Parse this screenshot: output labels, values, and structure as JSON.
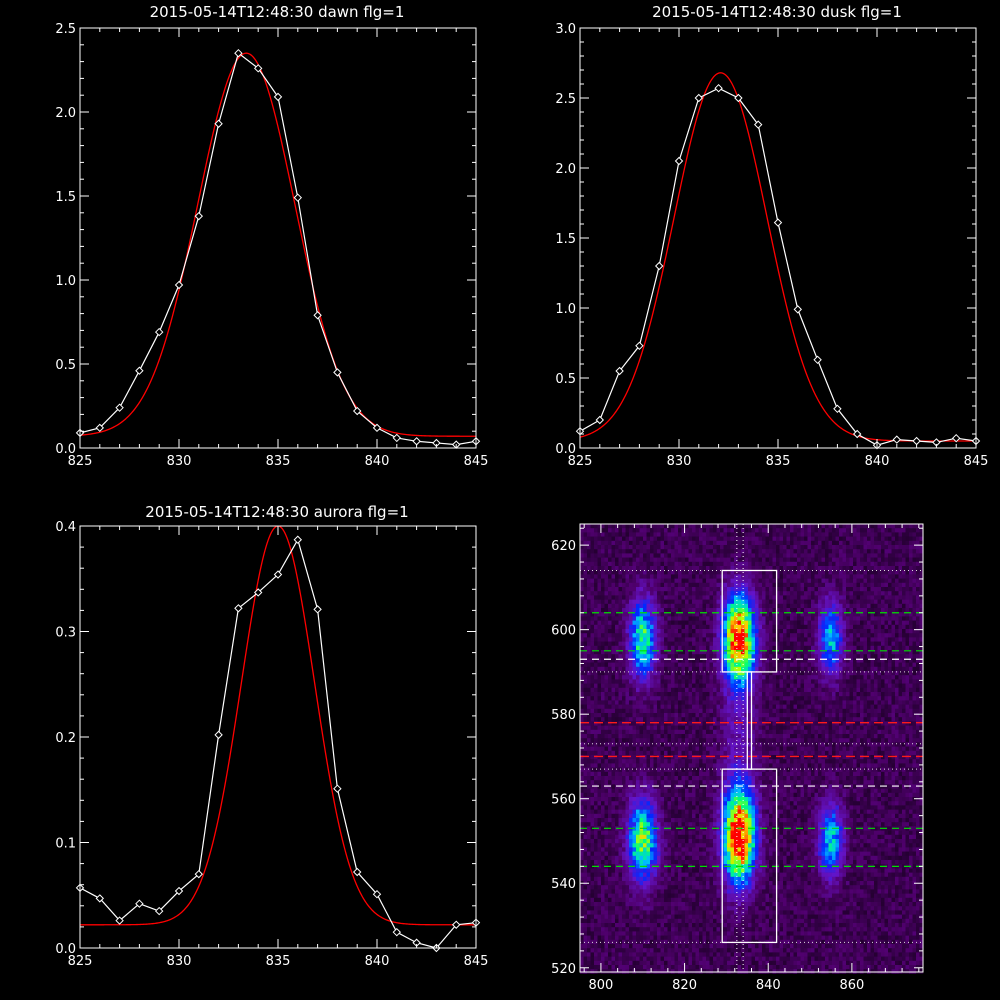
{
  "colors": {
    "background": "#000000",
    "axes": "#ffffff",
    "data": "#ffffff",
    "fit": "#ff0000",
    "green_lines": "#00e000",
    "red_lines": "#ff1a1a",
    "white_lines": "#ffffff"
  },
  "chart_data": [
    {
      "type": "line",
      "title": "2015-05-14T12:48:30 dawn flg=1",
      "xlim": [
        825,
        845
      ],
      "ylim": [
        0,
        2.5
      ],
      "xticks": [
        "825",
        "830",
        "835",
        "840",
        "845"
      ],
      "yticks": [
        "0.0",
        "0.5",
        "1.0",
        "1.5",
        "2.0",
        "2.5"
      ],
      "grid": false,
      "series": [
        {
          "marker": "diamond",
          "color": "#ffffff",
          "x": [
            825,
            826,
            827,
            828,
            829,
            830,
            831,
            832,
            833,
            834,
            835,
            836,
            837,
            838,
            839,
            840,
            841,
            842,
            843,
            844,
            845
          ],
          "y": [
            0.09,
            0.12,
            0.24,
            0.46,
            0.69,
            0.97,
            1.38,
            1.93,
            2.35,
            2.26,
            2.09,
            1.49,
            0.79,
            0.45,
            0.22,
            0.12,
            0.06,
            0.04,
            0.03,
            0.02,
            0.04
          ]
        },
        {
          "style": "curve",
          "color": "#ff0000",
          "amplitude": 2.28,
          "center": 833.4,
          "sigma": 2.45,
          "offset": 0.07
        }
      ]
    },
    {
      "type": "line",
      "title": "2015-05-14T12:48:30 dusk flg=1",
      "xlim": [
        825,
        845
      ],
      "ylim": [
        0,
        3.0
      ],
      "xticks": [
        "825",
        "830",
        "835",
        "840",
        "845"
      ],
      "yticks": [
        "0.0",
        "0.5",
        "1.0",
        "1.5",
        "2.0",
        "2.5",
        "3.0"
      ],
      "grid": false,
      "series": [
        {
          "marker": "diamond",
          "color": "#ffffff",
          "x": [
            825,
            826,
            827,
            828,
            829,
            830,
            831,
            832,
            833,
            834,
            835,
            836,
            837,
            838,
            839,
            840,
            841,
            842,
            843,
            844,
            845
          ],
          "y": [
            0.12,
            0.2,
            0.55,
            0.73,
            1.3,
            2.05,
            2.5,
            2.57,
            2.5,
            2.31,
            1.61,
            0.99,
            0.63,
            0.28,
            0.1,
            0.02,
            0.06,
            0.05,
            0.04,
            0.07,
            0.05
          ]
        },
        {
          "style": "curve",
          "color": "#ff0000",
          "amplitude": 2.63,
          "center": 832.1,
          "sigma": 2.35,
          "offset": 0.05
        }
      ]
    },
    {
      "type": "line",
      "title": "2015-05-14T12:48:30 aurora flg=1",
      "xlim": [
        825,
        845
      ],
      "ylim": [
        0,
        0.4
      ],
      "xticks": [
        "825",
        "830",
        "835",
        "840",
        "845"
      ],
      "yticks": [
        "0.0",
        "0.1",
        "0.2",
        "0.3",
        "0.4"
      ],
      "grid": false,
      "series": [
        {
          "marker": "diamond",
          "color": "#ffffff",
          "x": [
            825,
            826,
            827,
            828,
            829,
            830,
            831,
            832,
            833,
            834,
            835,
            836,
            837,
            838,
            839,
            840,
            841,
            842,
            843,
            844,
            845
          ],
          "y": [
            0.057,
            0.047,
            0.026,
            0.042,
            0.035,
            0.054,
            0.07,
            0.202,
            0.322,
            0.337,
            0.354,
            0.387,
            0.321,
            0.151,
            0.072,
            0.051,
            0.015,
            0.005,
            0.0,
            0.022,
            0.024
          ]
        },
        {
          "style": "curve",
          "color": "#ff0000",
          "amplitude": 0.378,
          "center": 835.0,
          "sigma": 1.85,
          "offset": 0.022
        }
      ]
    },
    {
      "type": "heatmap",
      "title": "",
      "xlim": [
        795,
        877
      ],
      "ylim": [
        519,
        625
      ],
      "xticks": [
        "800",
        "820",
        "840",
        "860"
      ],
      "yticks": [
        "520",
        "540",
        "560",
        "580",
        "600",
        "620"
      ],
      "grid": false,
      "blobs": [
        {
          "x": 810,
          "y": 598,
          "sx": 2.2,
          "sy": 6.5,
          "amp": 0.55
        },
        {
          "x": 810,
          "y": 550,
          "sx": 2.4,
          "sy": 6.5,
          "amp": 0.62
        },
        {
          "x": 833,
          "y": 598,
          "sx": 2.6,
          "sy": 7.0,
          "amp": 0.92
        },
        {
          "x": 833,
          "y": 551,
          "sx": 2.6,
          "sy": 7.5,
          "amp": 1.0
        },
        {
          "x": 855,
          "y": 598,
          "sx": 2.0,
          "sy": 6.0,
          "amp": 0.42
        },
        {
          "x": 855,
          "y": 550,
          "sx": 2.0,
          "sy": 6.0,
          "amp": 0.48
        },
        {
          "x": 833,
          "y": 575,
          "sx": 3.0,
          "sy": 14,
          "amp": 0.12
        }
      ],
      "overlays": {
        "green_dashed_y": [
          604,
          595,
          553,
          544
        ],
        "red_dashed_y": [
          578,
          570
        ],
        "white_dashed_y": [
          593,
          563
        ],
        "white_dotted_y": [
          614,
          590,
          573,
          567,
          526
        ],
        "vertical_dotted_x": [
          832.5,
          834
        ],
        "boxes": [
          {
            "x0": 829,
            "x1": 842,
            "y0": 590,
            "y1": 614
          },
          {
            "x0": 829,
            "x1": 842,
            "y0": 526,
            "y1": 567
          },
          {
            "x0": 835,
            "x1": 836,
            "y0": 567,
            "y1": 590
          }
        ]
      }
    }
  ]
}
